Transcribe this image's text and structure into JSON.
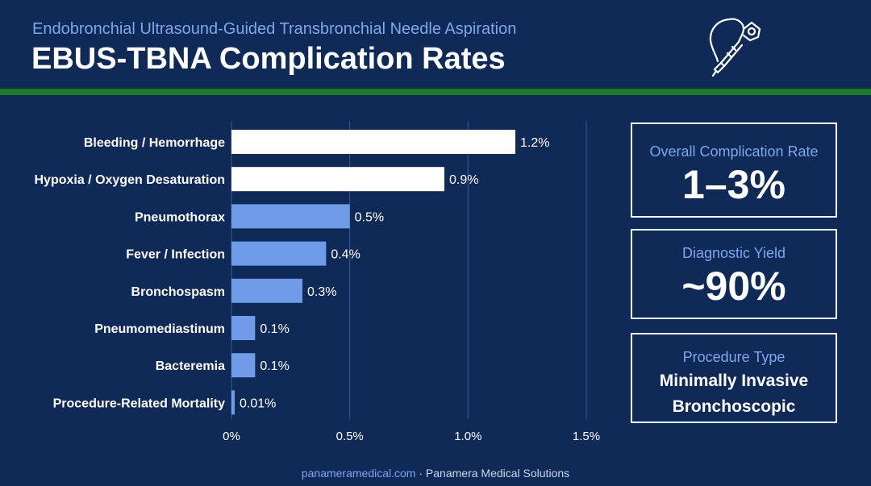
{
  "header": {
    "subtitle": "Endobronchial Ultrasound-Guided Transbronchial Needle Aspiration",
    "title": "EBUS-TBNA Complication Rates",
    "logo_icon": "ebus-bronchoscope-icon"
  },
  "chart_data": {
    "type": "bar",
    "orientation": "horizontal",
    "categories": [
      "Bleeding / Hemorrhage",
      "Hypoxia / Oxygen Desaturation",
      "Pneumothorax",
      "Fever / Infection",
      "Bronchospasm",
      "Pneumomediastinum",
      "Bacteremia",
      "Procedure-Related Mortality"
    ],
    "values": [
      1.2,
      0.9,
      0.5,
      0.4,
      0.3,
      0.1,
      0.1,
      0.01
    ],
    "value_labels": [
      "1.2%",
      "0.9%",
      "0.5%",
      "0.4%",
      "0.3%",
      "0.1%",
      "0.1%",
      "0.01%"
    ],
    "highlight": [
      true,
      true,
      false,
      false,
      false,
      false,
      false,
      false
    ],
    "xlim": [
      0,
      1.5
    ],
    "xticks": [
      0,
      0.5,
      1.0,
      1.5
    ],
    "xtick_labels": [
      "0%",
      "0.5%",
      "1.0%",
      "1.5%"
    ],
    "grid": "vertical",
    "colors": {
      "highlight": "#ffffff",
      "default": "#6f9be8",
      "grid": "#3a5a8e"
    }
  },
  "stats": {
    "overall": {
      "label": "Overall Complication Rate",
      "value": "1–3%"
    },
    "yield": {
      "label": "Diagnostic Yield",
      "value": "~90%"
    },
    "procedure": {
      "label": "Procedure Type",
      "line1": "Minimally Invasive",
      "line2": "Bronchoscopic"
    }
  },
  "footer": {
    "link": "panameramedical.com",
    "separator": " · ",
    "org": "Panamera Medical Solutions"
  },
  "colors": {
    "background": "#0f2a57",
    "accent_green": "#1f7a2a",
    "accent_blue": "#7fa6ec"
  }
}
